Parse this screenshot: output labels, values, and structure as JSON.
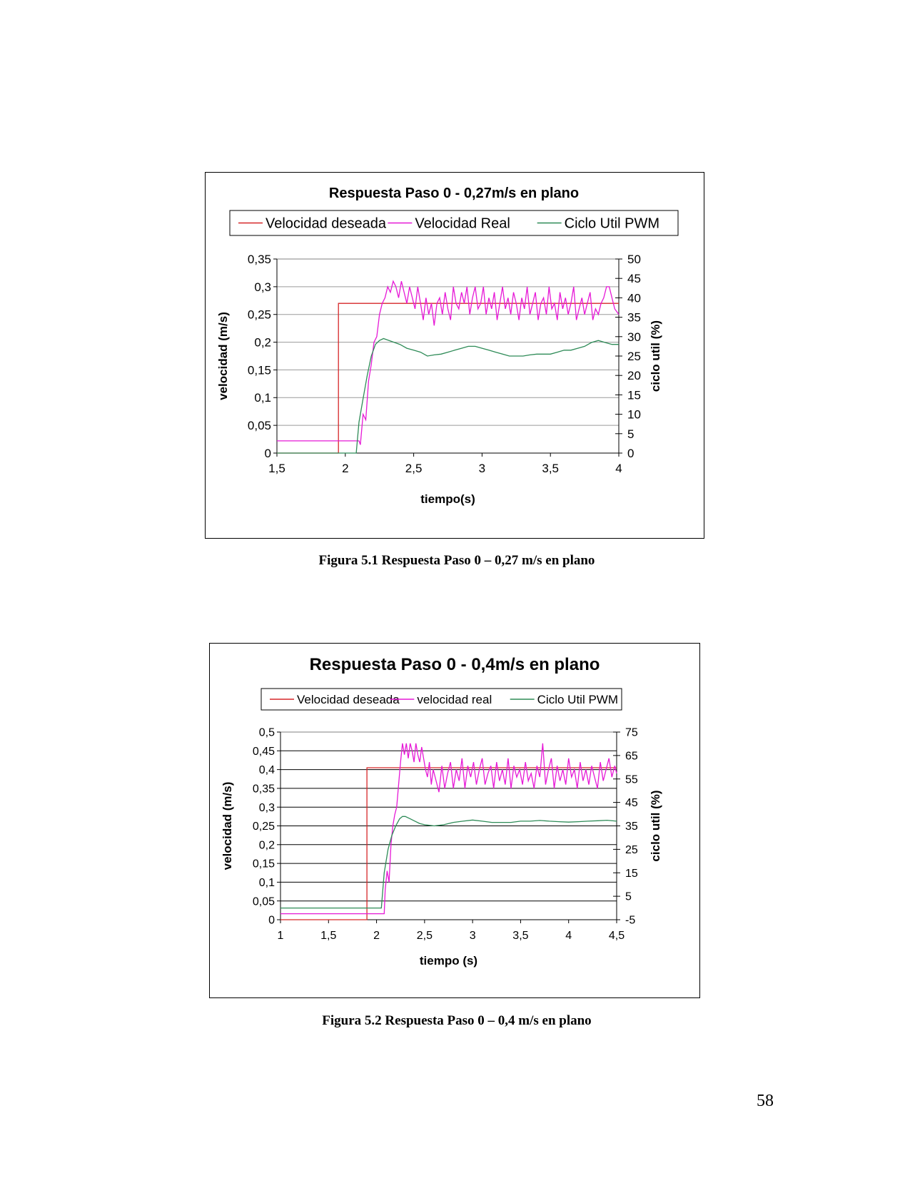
{
  "page": {
    "number": "58"
  },
  "captions": {
    "fig1": "Figura 5.1 Respuesta Paso 0 – 0,27 m/s en plano",
    "fig2": "Figura 5.2 Respuesta Paso 0 – 0,4 m/s en plano"
  },
  "chart_data": [
    {
      "type": "line",
      "title": "Respuesta Paso 0 - 0,27m/s en plano",
      "xlabel": "tiempo(s)",
      "ylabel": "velocidad (m/s)",
      "y2label": "ciclo util (%)",
      "xlim": [
        1.5,
        4
      ],
      "ylim": [
        0,
        0.35
      ],
      "y2lim": [
        0,
        50
      ],
      "xticks": [
        "1,5",
        "2",
        "2,5",
        "3",
        "3,5",
        "4"
      ],
      "xtick_values": [
        1.5,
        2,
        2.5,
        3,
        3.5,
        4
      ],
      "yticks": [
        "0",
        "0,05",
        "0,1",
        "0,15",
        "0,2",
        "0,25",
        "0,3",
        "0,35"
      ],
      "ytick_values": [
        0,
        0.05,
        0.1,
        0.15,
        0.2,
        0.25,
        0.3,
        0.35
      ],
      "y2ticks": [
        "0",
        "5",
        "10",
        "15",
        "20",
        "25",
        "30",
        "35",
        "40",
        "45",
        "50"
      ],
      "y2tick_values": [
        0,
        5,
        10,
        15,
        20,
        25,
        30,
        35,
        40,
        45,
        50
      ],
      "grid": true,
      "legend_position": "top",
      "series": [
        {
          "name": "Velocidad deseada",
          "color": "#d62728",
          "axis": "left",
          "x": [
            1.5,
            1.95,
            1.95,
            4
          ],
          "y": [
            0,
            0,
            0.27,
            0.27
          ]
        },
        {
          "name": "Velocidad Real",
          "color": "#e619d6",
          "axis": "left",
          "x": [
            1.5,
            2.1,
            2.11,
            2.13,
            2.15,
            2.17,
            2.19,
            2.21,
            2.23,
            2.25,
            2.27,
            2.29,
            2.31,
            2.33,
            2.35,
            2.37,
            2.39,
            2.41,
            2.43,
            2.45,
            2.47,
            2.49,
            2.51,
            2.53,
            2.55,
            2.57,
            2.59,
            2.61,
            2.63,
            2.65,
            2.67,
            2.69,
            2.71,
            2.73,
            2.75,
            2.77,
            2.79,
            2.81,
            2.83,
            2.85,
            2.87,
            2.89,
            2.91,
            2.93,
            2.95,
            2.97,
            2.99,
            3.01,
            3.03,
            3.05,
            3.07,
            3.09,
            3.11,
            3.13,
            3.15,
            3.17,
            3.19,
            3.21,
            3.23,
            3.25,
            3.27,
            3.29,
            3.31,
            3.33,
            3.35,
            3.37,
            3.39,
            3.41,
            3.43,
            3.45,
            3.47,
            3.49,
            3.51,
            3.53,
            3.55,
            3.57,
            3.59,
            3.61,
            3.63,
            3.65,
            3.67,
            3.69,
            3.71,
            3.73,
            3.75,
            3.77,
            3.79,
            3.81,
            3.83,
            3.85,
            3.87,
            3.89,
            3.91,
            3.93,
            3.95,
            3.97,
            4.0
          ],
          "y": [
            0.022,
            0.022,
            0.015,
            0.07,
            0.06,
            0.13,
            0.16,
            0.2,
            0.21,
            0.25,
            0.27,
            0.28,
            0.3,
            0.29,
            0.31,
            0.3,
            0.28,
            0.31,
            0.29,
            0.27,
            0.3,
            0.28,
            0.26,
            0.3,
            0.27,
            0.24,
            0.28,
            0.25,
            0.27,
            0.23,
            0.27,
            0.28,
            0.25,
            0.29,
            0.26,
            0.24,
            0.3,
            0.27,
            0.26,
            0.29,
            0.27,
            0.3,
            0.25,
            0.28,
            0.3,
            0.26,
            0.27,
            0.3,
            0.25,
            0.28,
            0.26,
            0.29,
            0.24,
            0.27,
            0.3,
            0.26,
            0.28,
            0.25,
            0.29,
            0.27,
            0.24,
            0.28,
            0.26,
            0.3,
            0.25,
            0.27,
            0.29,
            0.24,
            0.27,
            0.28,
            0.25,
            0.3,
            0.26,
            0.27,
            0.24,
            0.29,
            0.26,
            0.28,
            0.25,
            0.27,
            0.3,
            0.24,
            0.26,
            0.28,
            0.25,
            0.27,
            0.29,
            0.24,
            0.26,
            0.25,
            0.27,
            0.28,
            0.3,
            0.3,
            0.28,
            0.26,
            0.25
          ]
        },
        {
          "name": "Ciclo Util PWM",
          "color": "#2e8b57",
          "axis": "right",
          "x": [
            1.5,
            2.08,
            2.1,
            2.13,
            2.16,
            2.19,
            2.22,
            2.25,
            2.28,
            2.32,
            2.36,
            2.4,
            2.45,
            2.5,
            2.55,
            2.6,
            2.65,
            2.7,
            2.75,
            2.8,
            2.85,
            2.9,
            2.95,
            3.0,
            3.05,
            3.1,
            3.15,
            3.2,
            3.25,
            3.3,
            3.35,
            3.4,
            3.45,
            3.5,
            3.55,
            3.6,
            3.65,
            3.7,
            3.75,
            3.8,
            3.85,
            3.9,
            3.95,
            4.0
          ],
          "y": [
            0,
            0,
            8,
            14,
            20,
            25,
            28,
            29,
            29.5,
            29,
            28.5,
            28,
            27,
            26.5,
            26,
            25,
            25.3,
            25.5,
            26,
            26.5,
            27,
            27.5,
            27.5,
            27,
            26.5,
            26,
            25.5,
            25,
            25,
            25,
            25.3,
            25.5,
            25.5,
            25.5,
            26,
            26.5,
            26.5,
            27,
            27.5,
            28.5,
            29,
            28.5,
            28,
            28
          ]
        }
      ]
    },
    {
      "type": "line",
      "title": "Respuesta Paso 0 - 0,4m/s en plano",
      "xlabel": "tiempo (s)",
      "ylabel": "velocidad (m/s)",
      "y2label": "ciclo util (%)",
      "xlim": [
        1,
        4.5
      ],
      "ylim": [
        0,
        0.5
      ],
      "y2lim": [
        -5,
        75
      ],
      "xticks": [
        "1",
        "1,5",
        "2",
        "2,5",
        "3",
        "3,5",
        "4",
        "4,5"
      ],
      "xtick_values": [
        1,
        1.5,
        2,
        2.5,
        3,
        3.5,
        4,
        4.5
      ],
      "yticks": [
        "0",
        "0,05",
        "0,1",
        "0,15",
        "0,2",
        "0,25",
        "0,3",
        "0,35",
        "0,4",
        "0,45",
        "0,5"
      ],
      "ytick_values": [
        0,
        0.05,
        0.1,
        0.15,
        0.2,
        0.25,
        0.3,
        0.35,
        0.4,
        0.45,
        0.5
      ],
      "y2ticks": [
        "-5",
        "5",
        "15",
        "25",
        "35",
        "45",
        "55",
        "65",
        "75"
      ],
      "y2tick_values": [
        -5,
        5,
        15,
        25,
        35,
        45,
        55,
        65,
        75
      ],
      "grid": true,
      "legend_position": "top",
      "series": [
        {
          "name": "Velocidad deseada",
          "color": "#d62728",
          "axis": "left",
          "x": [
            1,
            1.9,
            1.9,
            4.5
          ],
          "y": [
            0,
            0,
            0.405,
            0.405
          ]
        },
        {
          "name": "velocidad real",
          "color": "#e619d6",
          "axis": "left",
          "x": [
            1,
            2.08,
            2.09,
            2.11,
            2.13,
            2.15,
            2.17,
            2.19,
            2.21,
            2.23,
            2.25,
            2.27,
            2.29,
            2.31,
            2.33,
            2.35,
            2.37,
            2.39,
            2.41,
            2.43,
            2.45,
            2.47,
            2.49,
            2.51,
            2.53,
            2.55,
            2.57,
            2.59,
            2.62,
            2.65,
            2.68,
            2.71,
            2.74,
            2.77,
            2.8,
            2.83,
            2.86,
            2.89,
            2.92,
            2.95,
            2.98,
            3.01,
            3.04,
            3.07,
            3.1,
            3.13,
            3.16,
            3.19,
            3.22,
            3.25,
            3.28,
            3.31,
            3.34,
            3.37,
            3.4,
            3.43,
            3.46,
            3.49,
            3.52,
            3.55,
            3.58,
            3.61,
            3.64,
            3.67,
            3.7,
            3.73,
            3.76,
            3.79,
            3.82,
            3.85,
            3.88,
            3.91,
            3.94,
            3.97,
            4.0,
            4.03,
            4.06,
            4.09,
            4.12,
            4.15,
            4.18,
            4.21,
            4.24,
            4.27,
            4.3,
            4.33,
            4.36,
            4.39,
            4.42,
            4.45,
            4.48,
            4.5
          ],
          "y": [
            0.016,
            0.016,
            0.08,
            0.13,
            0.1,
            0.2,
            0.25,
            0.28,
            0.3,
            0.36,
            0.42,
            0.47,
            0.44,
            0.47,
            0.43,
            0.47,
            0.45,
            0.42,
            0.47,
            0.44,
            0.42,
            0.46,
            0.43,
            0.4,
            0.38,
            0.42,
            0.36,
            0.4,
            0.37,
            0.34,
            0.41,
            0.35,
            0.39,
            0.42,
            0.35,
            0.4,
            0.37,
            0.43,
            0.35,
            0.41,
            0.38,
            0.42,
            0.36,
            0.4,
            0.43,
            0.36,
            0.39,
            0.41,
            0.35,
            0.42,
            0.37,
            0.4,
            0.36,
            0.43,
            0.35,
            0.41,
            0.38,
            0.4,
            0.36,
            0.42,
            0.37,
            0.39,
            0.35,
            0.41,
            0.38,
            0.47,
            0.36,
            0.4,
            0.43,
            0.35,
            0.41,
            0.37,
            0.4,
            0.36,
            0.43,
            0.38,
            0.4,
            0.35,
            0.42,
            0.37,
            0.4,
            0.36,
            0.41,
            0.38,
            0.35,
            0.42,
            0.37,
            0.4,
            0.43,
            0.38,
            0.41,
            0.39
          ]
        },
        {
          "name": "Ciclo Util PWM",
          "color": "#2e8b57",
          "axis": "right",
          "x": [
            1,
            2.05,
            2.08,
            2.12,
            2.16,
            2.2,
            2.24,
            2.27,
            2.3,
            2.35,
            2.4,
            2.45,
            2.5,
            2.6,
            2.7,
            2.8,
            2.9,
            3.0,
            3.1,
            3.2,
            3.3,
            3.4,
            3.5,
            3.6,
            3.7,
            3.8,
            3.9,
            4.0,
            4.1,
            4.2,
            4.3,
            4.4,
            4.5
          ],
          "y": [
            0,
            0,
            15,
            25,
            31,
            35,
            38,
            39,
            39,
            38,
            37,
            36,
            35.5,
            35,
            35.5,
            36.5,
            37,
            37.5,
            37,
            36.5,
            36.5,
            36.5,
            37,
            37,
            37.3,
            37,
            36.8,
            36.6,
            36.8,
            37,
            37.2,
            37.4,
            37
          ]
        }
      ]
    }
  ]
}
